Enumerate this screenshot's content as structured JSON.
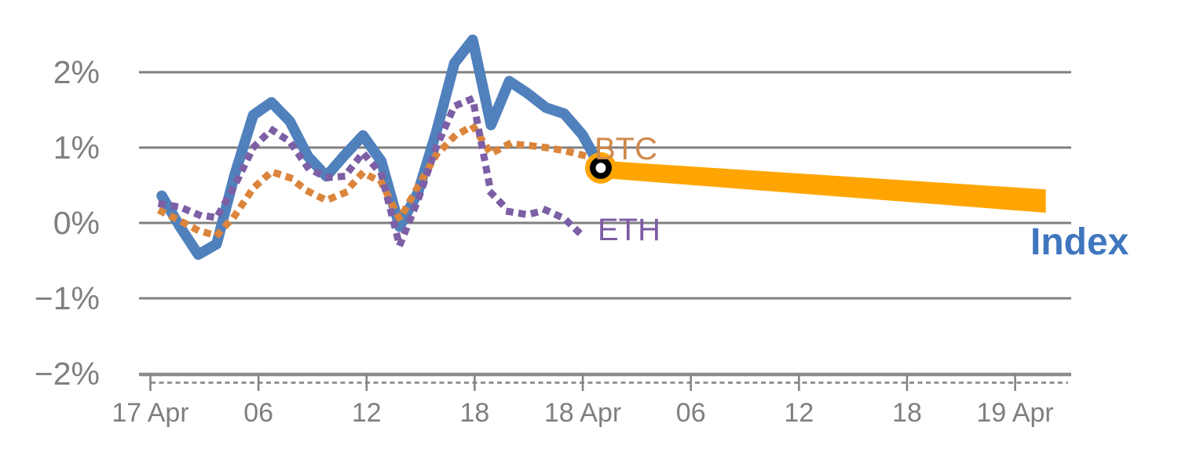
{
  "page": {
    "background": "#ffffff"
  },
  "labels": {
    "btc": "BTC",
    "eth": "ETH",
    "index": "Index"
  },
  "colors": {
    "index_line": "#5081BC",
    "eth_line": "#7D5FA5",
    "btc_line": "#DB853C",
    "btc_label": "#CF894A",
    "eth_label": "#7D5CA5",
    "index_label": "#3F76BE",
    "band": "#FFA502",
    "marker_fill": "#FFA502",
    "marker_ring": "#000000",
    "marker_center": "#FFFFFF",
    "grid": "#808080",
    "axis": "#8C8C8C",
    "tick_text": "#7F7F7F"
  },
  "chart_data": {
    "type": "line",
    "title": "",
    "subtitle": "",
    "legend_position": "end-of-line-labels",
    "grid": true,
    "x_axis": {
      "unit": "time",
      "tick_labels": [
        "17 Apr",
        "06",
        "12",
        "18",
        "18 Apr",
        "06",
        "12",
        "18",
        "19 Apr"
      ],
      "major_tick_hours": [
        0,
        6,
        12,
        18,
        24,
        30,
        36,
        42,
        48
      ],
      "minor_ticks": "dashed strip below axis",
      "range_hours": [
        -0.6,
        51.2
      ]
    },
    "y_axis": {
      "tick_labels": [
        "2%",
        "1%",
        "0%",
        "−1%",
        "−2%"
      ],
      "tick_values": [
        2,
        1,
        0,
        -1,
        -2
      ],
      "unit": "% change",
      "range": [
        -2.15,
        2.65
      ]
    },
    "series": [
      {
        "name": "Index",
        "style": "solid",
        "color_key": "index_line",
        "start_hour": 0.63,
        "step_hours": 1.0154,
        "values": [
          0.36,
          -0.05,
          -0.42,
          -0.28,
          0.65,
          1.43,
          1.6,
          1.35,
          0.88,
          0.62,
          0.9,
          1.16,
          0.82,
          -0.05,
          0.4,
          1.2,
          2.12,
          2.43,
          1.3,
          1.88,
          1.72,
          1.53,
          1.45,
          1.17,
          0.73
        ]
      },
      {
        "name": "BTC",
        "style": "dotted",
        "color_key": "btc_line",
        "start_hour": 0.63,
        "step_hours": 1.0154,
        "values": [
          0.15,
          0.03,
          -0.1,
          -0.17,
          0.1,
          0.46,
          0.68,
          0.6,
          0.42,
          0.3,
          0.4,
          0.67,
          0.54,
          0.05,
          0.48,
          0.9,
          1.15,
          1.29,
          0.92,
          1.05,
          1.03,
          1.0,
          0.96,
          0.9,
          0.73
        ]
      },
      {
        "name": "ETH",
        "style": "dotted",
        "color_key": "eth_line",
        "start_hour": 0.63,
        "step_hours": 1.0154,
        "values": [
          0.25,
          0.21,
          0.11,
          0.07,
          0.5,
          1.0,
          1.24,
          1.08,
          0.73,
          0.6,
          0.62,
          0.93,
          0.65,
          -0.3,
          0.3,
          1.0,
          1.55,
          1.65,
          0.4,
          0.15,
          0.11,
          0.17,
          0.06,
          -0.17
        ]
      }
    ],
    "forecast_band": {
      "series": "Index",
      "start_hour": 25.1,
      "start_value": 0.71,
      "end_hour": 49.7,
      "end_value": 0.29,
      "start_half_width_pct": 0.115,
      "end_half_width_pct": 0.155
    },
    "marker": {
      "hour": 25.0,
      "value": 0.73
    }
  }
}
